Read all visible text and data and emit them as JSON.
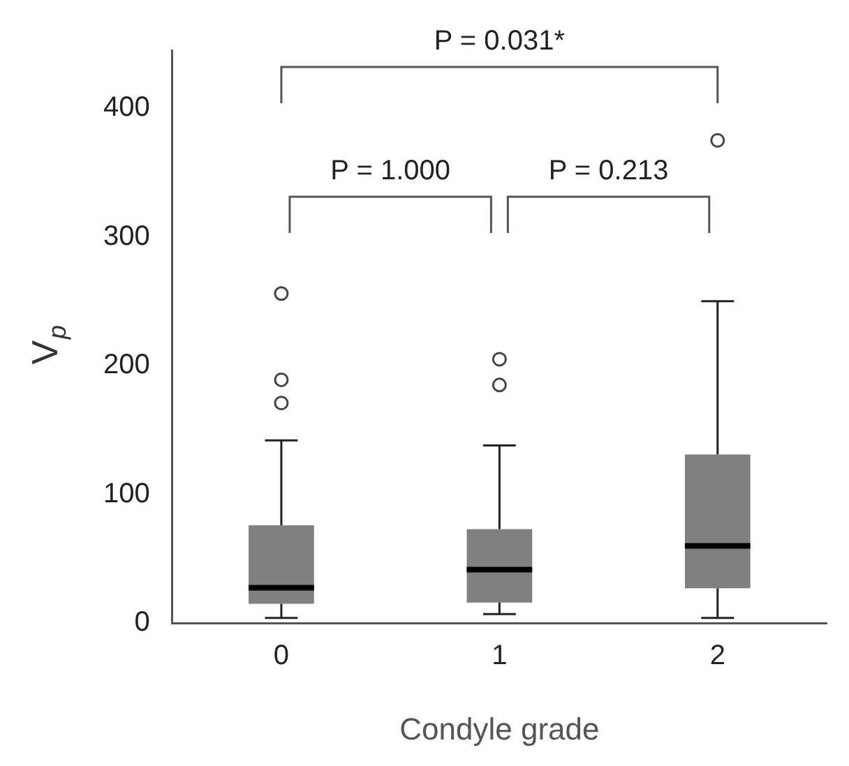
{
  "chart_data": {
    "type": "box",
    "xlabel": "Condyle grade",
    "ylabel": "V$_{p}$",
    "categories": [
      "0",
      "1",
      "2"
    ],
    "color": "#808080",
    "boxes": [
      {
        "low": 4,
        "q1": 15,
        "median": 27.5,
        "q3": 76,
        "high": 142,
        "outliers": [
          171,
          189,
          256
        ]
      },
      {
        "low": 7,
        "q1": 16,
        "median": 41.5,
        "q3": 73,
        "high": 138,
        "outliers": [
          185,
          205
        ]
      },
      {
        "low": 4,
        "q1": 27,
        "median": 60,
        "q3": 131,
        "high": 250,
        "outliers": [
          375
        ]
      }
    ],
    "ylim": [
      0,
      445
    ],
    "yticks": [
      0,
      100,
      200,
      300,
      400
    ],
    "grid": false,
    "legend": false,
    "annotations": [
      "P = 0.031*",
      "P = 1.000",
      "P = 0.213"
    ]
  }
}
